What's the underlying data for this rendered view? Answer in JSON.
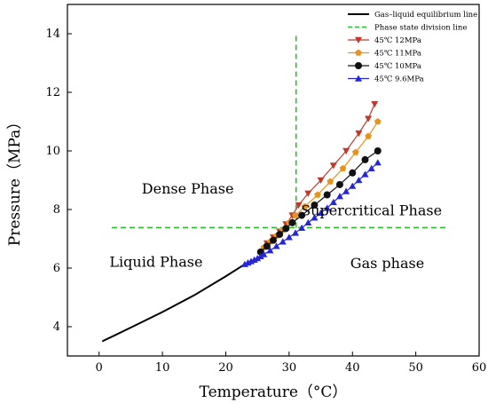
{
  "chart_data": {
    "type": "line",
    "xlabel": "Temperature（°C）",
    "ylabel": "Pressure（MPa）",
    "xlim": [
      -5,
      60
    ],
    "ylim": [
      3,
      15
    ],
    "xticks": [
      0,
      10,
      20,
      30,
      40,
      50,
      60
    ],
    "yticks": [
      4,
      6,
      8,
      10,
      12,
      14
    ],
    "legend_position": "top-right",
    "grid": false,
    "equilibrium_line": {
      "name": "Gas–liquid equilibrium line",
      "color": "#000000",
      "x": [
        0.5,
        5,
        10,
        15,
        20,
        23
      ],
      "y": [
        3.5,
        3.97,
        4.5,
        5.07,
        5.72,
        6.13
      ]
    },
    "phase_division_line": {
      "name": "Phase state division line",
      "color": "#2db82d",
      "horizontal": {
        "x": [
          2,
          55
        ],
        "y": 7.38
      },
      "vertical": {
        "x": 31.1,
        "y": [
          7.38,
          14
        ]
      }
    },
    "series": [
      {
        "name": "45℃ 12MPa",
        "color": "#c0392b",
        "marker": "triangle-down",
        "x": [
          26.5,
          27.5,
          28.5,
          29.5,
          30.5,
          31.5,
          33,
          35,
          37,
          39,
          41,
          42.5,
          43.5
        ],
        "y": [
          6.85,
          7.05,
          7.25,
          7.5,
          7.8,
          8.15,
          8.55,
          9.0,
          9.5,
          10.0,
          10.6,
          11.1,
          11.6
        ]
      },
      {
        "name": "45℃ 11MPa",
        "color": "#e69420",
        "marker": "pentagon",
        "x": [
          26,
          27,
          28,
          29,
          30,
          31,
          32.5,
          34.5,
          36.5,
          38.5,
          40.5,
          42.5,
          44
        ],
        "y": [
          6.7,
          6.9,
          7.1,
          7.3,
          7.55,
          7.8,
          8.1,
          8.5,
          8.95,
          9.4,
          9.95,
          10.5,
          11.0
        ]
      },
      {
        "name": "45℃ 10MPa",
        "color": "#111111",
        "marker": "circle",
        "x": [
          25.5,
          26.5,
          27.5,
          28.5,
          29.5,
          30.5,
          32,
          34,
          36,
          38,
          40,
          42,
          44
        ],
        "y": [
          6.55,
          6.75,
          6.95,
          7.15,
          7.35,
          7.55,
          7.8,
          8.15,
          8.5,
          8.85,
          9.25,
          9.7,
          10.0
        ]
      },
      {
        "name": "45℃ 9.6MPa",
        "color": "#2626d9",
        "marker": "triangle-up",
        "x": [
          23,
          23.5,
          24,
          24.5,
          25,
          25.5,
          26,
          27,
          28,
          29,
          30,
          31,
          32,
          33,
          34,
          35,
          36,
          37,
          38,
          39,
          40,
          41,
          42,
          43,
          44
        ],
        "y": [
          6.13,
          6.18,
          6.23,
          6.28,
          6.33,
          6.4,
          6.47,
          6.6,
          6.75,
          6.9,
          7.05,
          7.2,
          7.37,
          7.55,
          7.72,
          7.88,
          8.05,
          8.25,
          8.45,
          8.62,
          8.8,
          9.0,
          9.2,
          9.4,
          9.6
        ]
      }
    ],
    "annotations": [
      {
        "text": "Dense Phase",
        "x": 14,
        "y": 8.55
      },
      {
        "text": "Supercritical Phase",
        "x": 43,
        "y": 7.8
      },
      {
        "text": "Liquid Phase",
        "x": 9,
        "y": 6.05
      },
      {
        "text": "Gas phase",
        "x": 45.5,
        "y": 6.0
      }
    ]
  }
}
